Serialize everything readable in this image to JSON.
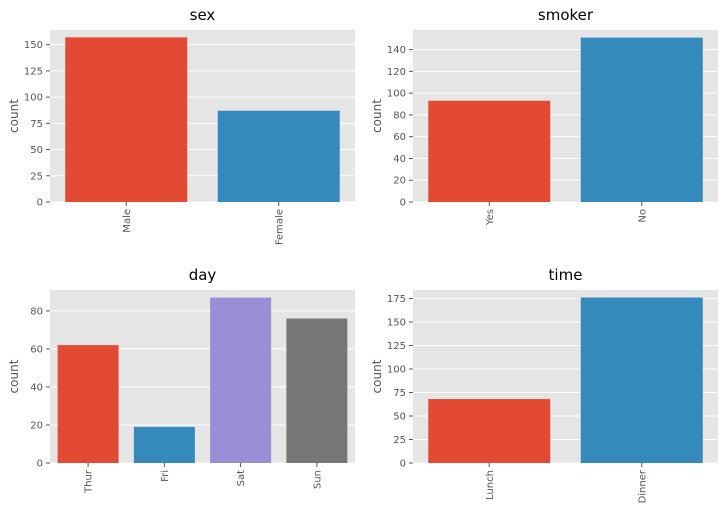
{
  "chart_data": [
    {
      "type": "bar",
      "title": "sex",
      "xlabel": "",
      "ylabel": "count",
      "categories": [
        "Male",
        "Female"
      ],
      "values": [
        157,
        87
      ],
      "colors": [
        "#E24A33",
        "#348ABD"
      ],
      "ylim": [
        0,
        164
      ],
      "yticks": [
        0,
        25,
        50,
        75,
        100,
        125,
        150
      ],
      "grid": true
    },
    {
      "type": "bar",
      "title": "smoker",
      "xlabel": "",
      "ylabel": "count",
      "categories": [
        "Yes",
        "No"
      ],
      "values": [
        93,
        151
      ],
      "colors": [
        "#E24A33",
        "#348ABD"
      ],
      "ylim": [
        0,
        158
      ],
      "yticks": [
        0,
        20,
        40,
        60,
        80,
        100,
        120,
        140
      ],
      "grid": true
    },
    {
      "type": "bar",
      "title": "day",
      "xlabel": "",
      "ylabel": "count",
      "categories": [
        "Thur",
        "Fri",
        "Sat",
        "Sun"
      ],
      "values": [
        62,
        19,
        87,
        76
      ],
      "colors": [
        "#E24A33",
        "#348ABD",
        "#988ED5",
        "#777777"
      ],
      "ylim": [
        0,
        91
      ],
      "yticks": [
        0,
        20,
        40,
        60,
        80
      ],
      "grid": true
    },
    {
      "type": "bar",
      "title": "time",
      "xlabel": "",
      "ylabel": "count",
      "categories": [
        "Lunch",
        "Dinner"
      ],
      "values": [
        68,
        176
      ],
      "colors": [
        "#E24A33",
        "#348ABD"
      ],
      "ylim": [
        0,
        184
      ],
      "yticks": [
        0,
        25,
        50,
        75,
        100,
        125,
        150,
        175
      ],
      "grid": true
    }
  ]
}
